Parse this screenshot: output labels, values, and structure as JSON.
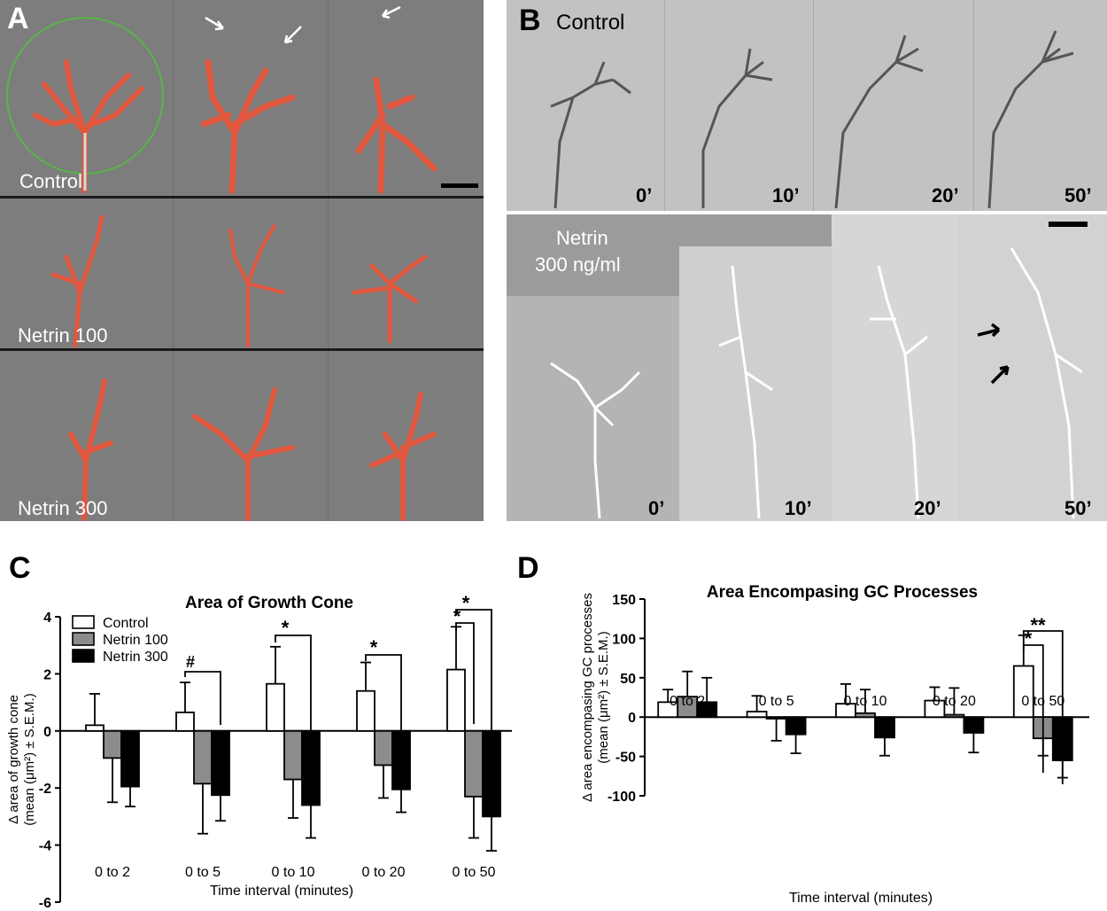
{
  "panel_a": {
    "letter": "A",
    "rows": [
      "Control",
      "Netrin 100",
      "Netrin 300"
    ]
  },
  "panel_b": {
    "letter": "B",
    "control_label": "Control",
    "netrin_label_line1": "Netrin",
    "netrin_label_line2": "300 ng/ml",
    "times": [
      "0’",
      "10’",
      "20’",
      "50’"
    ]
  },
  "panel_c": {
    "letter": "C",
    "legend": [
      "Control",
      "Netrin 100",
      "Netrin 300"
    ],
    "significance": [
      "#",
      "*",
      "*",
      "*",
      "*"
    ]
  },
  "panel_d": {
    "letter": "D",
    "significance": [
      "*",
      "**"
    ]
  },
  "colors": {
    "control": "#ffffff",
    "netrin100": "#8c8c8c",
    "netrin300": "#000000",
    "fluor": "#e0573e",
    "ring": "#5ab44a"
  },
  "chart_data": [
    {
      "type": "bar",
      "title": "Area of Growth Cone",
      "xlabel": "Time interval (minutes)",
      "ylabel_line1": "Δ area of growth cone",
      "ylabel_line2": "(mean (μm²) ± S.E.M.)",
      "categories": [
        "0 to 2",
        "0 to 5",
        "0 to 10",
        "0 to 20",
        "0 to 50"
      ],
      "ylim": [
        -6,
        4
      ],
      "yticks": [
        "4",
        "2",
        "0",
        "-2",
        "-4",
        "-6"
      ],
      "series": [
        {
          "name": "Control",
          "values": [
            0.2,
            0.65,
            1.65,
            1.4,
            2.15
          ],
          "errors": [
            1.1,
            1.05,
            1.3,
            1.0,
            1.5
          ]
        },
        {
          "name": "Netrin 100",
          "values": [
            -0.95,
            -1.85,
            -1.7,
            -1.2,
            -2.3
          ],
          "errors": [
            1.55,
            1.75,
            1.35,
            1.15,
            1.45
          ]
        },
        {
          "name": "Netrin 300",
          "values": [
            -1.95,
            -2.25,
            -2.6,
            -2.05,
            -3.0
          ],
          "errors": [
            0.7,
            0.9,
            1.15,
            0.8,
            1.2
          ]
        }
      ]
    },
    {
      "type": "bar",
      "title": "Area Encompasing GC Processes",
      "xlabel": "Time interval (minutes)",
      "ylabel_line1": "Δ area encompasing GC processes",
      "ylabel_line2": "(mean (μm²) ± S.E.M.)",
      "categories": [
        "0 to 2",
        "0 to 5",
        "0 to 10",
        "0 to 20",
        "0 to 50"
      ],
      "ylim": [
        -100,
        150
      ],
      "yticks": [
        "150",
        "100",
        "50",
        "0",
        "-50",
        "-100"
      ],
      "series": [
        {
          "name": "Control",
          "values": [
            19,
            7,
            17,
            21,
            65
          ],
          "errors": [
            16,
            20,
            25,
            17,
            39
          ]
        },
        {
          "name": "Netrin 100",
          "values": [
            26,
            -2,
            5,
            3,
            -27
          ],
          "errors": [
            32,
            28,
            30,
            34,
            22
          ]
        },
        {
          "name": "Netrin 300",
          "values": [
            19,
            -22,
            -26,
            -20,
            -55
          ],
          "errors": [
            31,
            24,
            23,
            25,
            22
          ]
        }
      ]
    }
  ]
}
